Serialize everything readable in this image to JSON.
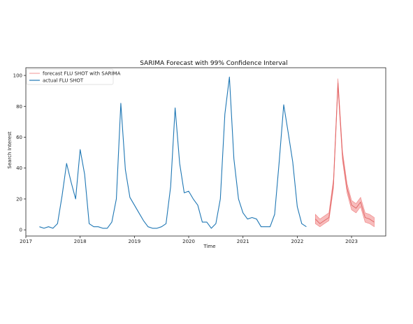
{
  "chart_data": {
    "type": "line",
    "title": "SARIMA Forecast with 99% Confidence Interval",
    "xlabel": "Time",
    "ylabel": "Search Interest",
    "xlim": [
      2017.0,
      2023.63
    ],
    "ylim": [
      -4,
      105
    ],
    "x_ticks": [
      2017,
      2018,
      2019,
      2020,
      2021,
      2022,
      2023
    ],
    "y_ticks": [
      0,
      20,
      40,
      60,
      80,
      100
    ],
    "legend": {
      "placement": "top-left",
      "entries": [
        "forecast FLU SHOT with SARIMA",
        "actual FLU SHOT"
      ]
    },
    "series": [
      {
        "name": "actual FLU SHOT",
        "color": "#1f77b4",
        "x": [
          2017.25,
          2017.333,
          2017.417,
          2017.5,
          2017.583,
          2017.667,
          2017.75,
          2017.833,
          2017.917,
          2018.0,
          2018.083,
          2018.167,
          2018.25,
          2018.333,
          2018.417,
          2018.5,
          2018.583,
          2018.667,
          2018.75,
          2018.833,
          2018.917,
          2019.0,
          2019.083,
          2019.167,
          2019.25,
          2019.333,
          2019.417,
          2019.5,
          2019.583,
          2019.667,
          2019.75,
          2019.833,
          2019.917,
          2020.0,
          2020.083,
          2020.167,
          2020.25,
          2020.333,
          2020.417,
          2020.5,
          2020.583,
          2020.667,
          2020.75,
          2020.833,
          2020.917,
          2021.0,
          2021.083,
          2021.167,
          2021.25,
          2021.333,
          2021.417,
          2021.5,
          2021.583,
          2021.667,
          2021.75,
          2021.833,
          2021.917,
          2022.0,
          2022.083,
          2022.167
        ],
        "values": [
          2,
          1,
          2,
          1,
          4,
          22,
          43,
          31,
          20,
          52,
          36,
          4,
          2,
          2,
          1,
          1,
          5,
          20,
          82,
          39,
          21,
          16,
          11,
          6,
          2,
          1,
          1,
          2,
          4,
          28,
          79,
          43,
          24,
          25,
          20,
          16,
          5,
          5,
          1,
          4,
          20,
          75,
          99,
          46,
          20,
          11,
          7,
          8,
          7,
          2,
          2,
          2,
          10,
          44,
          81,
          63,
          44,
          15,
          4,
          2
        ]
      },
      {
        "name": "forecast FLU SHOT with SARIMA",
        "color": "#f08080",
        "band_color": "#f4a6a6",
        "x": [
          2022.333,
          2022.417,
          2022.5,
          2022.583,
          2022.667,
          2022.75,
          2022.833,
          2022.917,
          2023.0,
          2023.083,
          2023.167,
          2023.25,
          2023.333,
          2023.417
        ],
        "values": [
          7,
          4,
          6,
          8,
          30,
          95,
          48,
          27,
          16,
          14,
          18,
          8,
          7,
          5
        ],
        "lower": [
          4,
          2,
          4,
          6,
          27,
          92,
          45,
          24,
          13,
          11,
          15,
          5,
          4,
          2
        ],
        "upper": [
          10,
          7,
          9,
          11,
          33,
          98,
          51,
          30,
          19,
          17,
          21,
          11,
          10,
          8
        ]
      }
    ]
  }
}
